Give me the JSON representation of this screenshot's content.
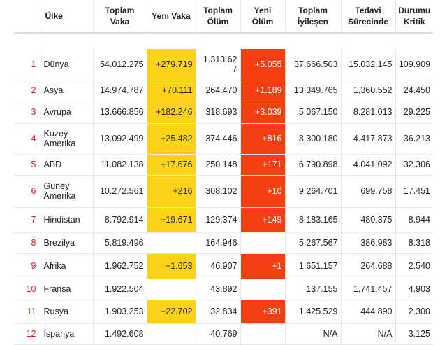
{
  "headers": {
    "country": "Ülke",
    "total_cases": "Toplam Vaka",
    "new_cases": "Yeni Vaka",
    "total_deaths": "Toplam Ölüm",
    "new_deaths": "Yeni Ölüm",
    "total_recovered": "Toplam İyileşen",
    "active_cases": "Tedavi Sürecinde",
    "critical": "Durumu Kritik"
  },
  "colors": {
    "new_cases_highlight": "#ffd21a",
    "new_deaths_highlight": "#f33f12",
    "index_text": "#d42020"
  },
  "rows": [
    {
      "idx": "1",
      "country": "Dünya",
      "total_cases": "54.012.275",
      "new_cases": "+279.719",
      "total_deaths": "1.313.627",
      "new_deaths": "+5.055",
      "total_recovered": "37.666.503",
      "active_cases": "15.032.145",
      "critical": "109.909"
    },
    {
      "idx": "2",
      "country": "Asya",
      "total_cases": "14.974.787",
      "new_cases": "+70.111",
      "total_deaths": "264.470",
      "new_deaths": "+1.189",
      "total_recovered": "13.349.765",
      "active_cases": "1.360.552",
      "critical": "24.450"
    },
    {
      "idx": "3",
      "country": "Avrupa",
      "total_cases": "13.666.856",
      "new_cases": "+182.246",
      "total_deaths": "318.693",
      "new_deaths": "+3.039",
      "total_recovered": "5.067.150",
      "active_cases": "8.281.013",
      "critical": "29.225"
    },
    {
      "idx": "4",
      "country": "Kuzey Amerika",
      "total_cases": "13.092.499",
      "new_cases": "+25.482",
      "total_deaths": "374.446",
      "new_deaths": "+816",
      "total_recovered": "8.300.180",
      "active_cases": "4.417.873",
      "critical": "36.213"
    },
    {
      "idx": "5",
      "country": "ABD",
      "total_cases": "11.082.138",
      "new_cases": "+17.676",
      "total_deaths": "250.148",
      "new_deaths": "+171",
      "total_recovered": "6.790.898",
      "active_cases": "4.041.092",
      "critical": "32.306"
    },
    {
      "idx": "6",
      "country": "Güney Amerika",
      "total_cases": "10.272.561",
      "new_cases": "+216",
      "total_deaths": "308.102",
      "new_deaths": "+10",
      "total_recovered": "9.264.701",
      "active_cases": "699.758",
      "critical": "17.451"
    },
    {
      "idx": "7",
      "country": "Hindistan",
      "total_cases": "8.792.914",
      "new_cases": "+19.671",
      "total_deaths": "129.374",
      "new_deaths": "+149",
      "total_recovered": "8.183.165",
      "active_cases": "480.375",
      "critical": "8.944"
    },
    {
      "idx": "8",
      "country": "Brezilya",
      "total_cases": "5.819.496",
      "new_cases": "",
      "total_deaths": "164.946",
      "new_deaths": "",
      "total_recovered": "5.267.567",
      "active_cases": "386.983",
      "critical": "8.318"
    },
    {
      "idx": "9",
      "country": "Afrika",
      "total_cases": "1.962.752",
      "new_cases": "+1.653",
      "total_deaths": "46.907",
      "new_deaths": "+1",
      "total_recovered": "1.651.157",
      "active_cases": "264.688",
      "critical": "2.540"
    },
    {
      "idx": "10",
      "country": "Fransa",
      "total_cases": "1.922.504",
      "new_cases": "",
      "total_deaths": "43.892",
      "new_deaths": "",
      "total_recovered": "137.155",
      "active_cases": "1.741.457",
      "critical": "4.903"
    },
    {
      "idx": "11",
      "country": "Rusya",
      "total_cases": "1.903.253",
      "new_cases": "+22.702",
      "total_deaths": "32.834",
      "new_deaths": "+391",
      "total_recovered": "1.425.529",
      "active_cases": "444.890",
      "critical": "2.300"
    },
    {
      "idx": "12",
      "country": "İspanya",
      "total_cases": "1.492.608",
      "new_cases": "",
      "total_deaths": "40.769",
      "new_deaths": "",
      "total_recovered": "N/A",
      "active_cases": "N/A",
      "critical": "3.125"
    }
  ]
}
